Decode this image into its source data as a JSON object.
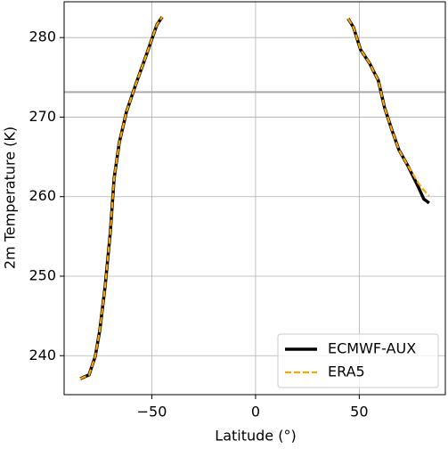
{
  "chart_data": {
    "type": "line",
    "xlabel": "Latitude (°)",
    "ylabel": "2m Temperature (K)",
    "x": [
      -84.5,
      -80.3,
      -77.3,
      -75.1,
      -72.5,
      -70,
      -68.2,
      -65.7,
      -62.2,
      -57.9,
      -52.4,
      -47.6,
      -45,
      0,
      44.6,
      47.2,
      50.6,
      54.9,
      59.2,
      62.2,
      65.7,
      69.1,
      73.4,
      78.5,
      81.1,
      83.7
    ],
    "series": [
      {
        "name": "ECMWF-AUX",
        "color": "#000000",
        "dash": false,
        "values": [
          237.1,
          237.6,
          239.9,
          243.2,
          248.8,
          255.6,
          262.3,
          266.8,
          270.7,
          274,
          278,
          281.6,
          282.6,
          null,
          282.4,
          281.3,
          278.5,
          276.8,
          274.6,
          271.2,
          268.4,
          265.9,
          263.9,
          261.2,
          259.7,
          259.2
        ]
      },
      {
        "name": "ERA5",
        "color": "#ffa500",
        "dash": true,
        "values": [
          237.1,
          237.6,
          239.9,
          243.2,
          248.8,
          255.6,
          262.3,
          266.8,
          270.7,
          274,
          278,
          281.6,
          282.6,
          null,
          282.4,
          281.3,
          278.5,
          276.8,
          274.6,
          271.2,
          268.4,
          265.9,
          263.9,
          261.7,
          260.8,
          260.1
        ]
      }
    ],
    "hline": 273.15,
    "hline_color": "#aaaaaa",
    "xlim": [
      -92.3,
      91.5
    ],
    "ylim": [
      235.1,
      284.5
    ],
    "xticks": [
      {
        "value": -50,
        "label": "−50"
      },
      0,
      50
    ],
    "yticks": [
      240,
      250,
      260,
      270,
      280
    ],
    "grid": true,
    "legend": "lower right"
  }
}
